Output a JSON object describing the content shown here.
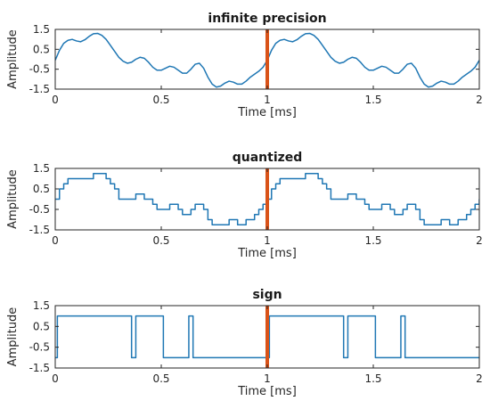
{
  "chart_data": [
    {
      "type": "line",
      "title": "infinite precision",
      "xlabel": "Time [ms]",
      "ylabel": "Amplitude",
      "xlim": [
        0,
        2
      ],
      "ylim": [
        -1.5,
        1.5
      ],
      "xticks": [
        0,
        0.5,
        1,
        1.5,
        2
      ],
      "xtick_labels": [
        "0",
        "0.5",
        "1",
        "1.5",
        "2"
      ],
      "yticks": [
        -1.5,
        -0.5,
        0.5,
        1.5
      ],
      "ytick_labels": [
        "-1.5",
        "-0.5",
        "0.5",
        "1.5"
      ],
      "grid": false,
      "marker_x": 1,
      "colors": {
        "series": "#1f77b4",
        "marker": "#d95319"
      },
      "series": [
        {
          "x": [
            0,
            0.02,
            0.04,
            0.06,
            0.08,
            0.1,
            0.12,
            0.14,
            0.16,
            0.18,
            0.2,
            0.22,
            0.24,
            0.26,
            0.28,
            0.3,
            0.32,
            0.34,
            0.36,
            0.38,
            0.4,
            0.42,
            0.44,
            0.46,
            0.48,
            0.5,
            0.52,
            0.54,
            0.56,
            0.58,
            0.6,
            0.62,
            0.64,
            0.66,
            0.68,
            0.7,
            0.72,
            0.74,
            0.76,
            0.78,
            0.8,
            0.82,
            0.84,
            0.86,
            0.88,
            0.9,
            0.92,
            0.94,
            0.96,
            0.98,
            1,
            1.02,
            1.04,
            1.06,
            1.08,
            1.1,
            1.12,
            1.14,
            1.16,
            1.18,
            1.2,
            1.22,
            1.24,
            1.26,
            1.28,
            1.3,
            1.32,
            1.34,
            1.36,
            1.38,
            1.4,
            1.42,
            1.44,
            1.46,
            1.48,
            1.5,
            1.52,
            1.54,
            1.56,
            1.58,
            1.6,
            1.62,
            1.64,
            1.66,
            1.68,
            1.7,
            1.72,
            1.74,
            1.76,
            1.78,
            1.8,
            1.82,
            1.84,
            1.86,
            1.88,
            1.9,
            1.92,
            1.94,
            1.96,
            1.98,
            2
          ],
          "y": [
            -0.05,
            0.45,
            0.8,
            0.95,
            1.0,
            0.92,
            0.88,
            0.98,
            1.15,
            1.28,
            1.3,
            1.2,
            1.0,
            0.7,
            0.4,
            0.1,
            -0.1,
            -0.2,
            -0.15,
            0.0,
            0.1,
            0.05,
            -0.15,
            -0.4,
            -0.55,
            -0.55,
            -0.45,
            -0.35,
            -0.4,
            -0.55,
            -0.7,
            -0.7,
            -0.5,
            -0.25,
            -0.2,
            -0.45,
            -0.9,
            -1.25,
            -1.4,
            -1.35,
            -1.2,
            -1.1,
            -1.15,
            -1.25,
            -1.25,
            -1.1,
            -0.9,
            -0.75,
            -0.6,
            -0.4,
            -0.05,
            0.45,
            0.8,
            0.95,
            1.0,
            0.92,
            0.88,
            0.98,
            1.15,
            1.28,
            1.3,
            1.2,
            1.0,
            0.7,
            0.4,
            0.1,
            -0.1,
            -0.2,
            -0.15,
            0.0,
            0.1,
            0.05,
            -0.15,
            -0.4,
            -0.55,
            -0.55,
            -0.45,
            -0.35,
            -0.4,
            -0.55,
            -0.7,
            -0.7,
            -0.5,
            -0.25,
            -0.2,
            -0.45,
            -0.9,
            -1.25,
            -1.4,
            -1.35,
            -1.2,
            -1.1,
            -1.15,
            -1.25,
            -1.25,
            -1.1,
            -0.9,
            -0.75,
            -0.6,
            -0.4,
            -0.05
          ]
        }
      ]
    },
    {
      "type": "line",
      "step": true,
      "title": "quantized",
      "xlabel": "Time [ms]",
      "ylabel": "Amplitude",
      "xlim": [
        0,
        2
      ],
      "ylim": [
        -1.5,
        1.5
      ],
      "xticks": [
        0,
        0.5,
        1,
        1.5,
        2
      ],
      "xtick_labels": [
        "0",
        "0.5",
        "1",
        "1.5",
        "2"
      ],
      "yticks": [
        -1.5,
        -0.5,
        0.5,
        1.5
      ],
      "ytick_labels": [
        "-1.5",
        "-0.5",
        "0.5",
        "1.5"
      ],
      "grid": false,
      "marker_x": 1,
      "colors": {
        "series": "#1f77b4",
        "marker": "#d95319"
      },
      "series": [
        {
          "x": [
            0,
            0.02,
            0.04,
            0.06,
            0.08,
            0.1,
            0.12,
            0.14,
            0.16,
            0.18,
            0.2,
            0.22,
            0.24,
            0.26,
            0.28,
            0.3,
            0.32,
            0.34,
            0.36,
            0.38,
            0.4,
            0.42,
            0.44,
            0.46,
            0.48,
            0.5,
            0.52,
            0.54,
            0.56,
            0.58,
            0.6,
            0.62,
            0.64,
            0.66,
            0.68,
            0.7,
            0.72,
            0.74,
            0.76,
            0.78,
            0.8,
            0.82,
            0.84,
            0.86,
            0.88,
            0.9,
            0.92,
            0.94,
            0.96,
            0.98,
            1,
            1.02,
            1.04,
            1.06,
            1.08,
            1.1,
            1.12,
            1.14,
            1.16,
            1.18,
            1.2,
            1.22,
            1.24,
            1.26,
            1.28,
            1.3,
            1.32,
            1.34,
            1.36,
            1.38,
            1.4,
            1.42,
            1.44,
            1.46,
            1.48,
            1.5,
            1.52,
            1.54,
            1.56,
            1.58,
            1.6,
            1.62,
            1.64,
            1.66,
            1.68,
            1.7,
            1.72,
            1.74,
            1.76,
            1.78,
            1.8,
            1.82,
            1.84,
            1.86,
            1.88,
            1.9,
            1.92,
            1.94,
            1.96,
            1.98,
            2
          ],
          "y": [
            0,
            0.5,
            0.75,
            1.0,
            1.0,
            1.0,
            1.0,
            1.0,
            1.0,
            1.25,
            1.25,
            1.25,
            1.0,
            0.75,
            0.5,
            0.0,
            0.0,
            0.0,
            0.0,
            0.25,
            0.25,
            0.0,
            0.0,
            -0.25,
            -0.5,
            -0.5,
            -0.5,
            -0.25,
            -0.25,
            -0.5,
            -0.75,
            -0.75,
            -0.5,
            -0.25,
            -0.25,
            -0.5,
            -1.0,
            -1.25,
            -1.25,
            -1.25,
            -1.25,
            -1.0,
            -1.0,
            -1.25,
            -1.25,
            -1.0,
            -1.0,
            -0.75,
            -0.5,
            -0.25,
            0,
            0.5,
            0.75,
            1.0,
            1.0,
            1.0,
            1.0,
            1.0,
            1.0,
            1.25,
            1.25,
            1.25,
            1.0,
            0.75,
            0.5,
            0.0,
            0.0,
            0.0,
            0.0,
            0.25,
            0.25,
            0.0,
            0.0,
            -0.25,
            -0.5,
            -0.5,
            -0.5,
            -0.25,
            -0.25,
            -0.5,
            -0.75,
            -0.75,
            -0.5,
            -0.25,
            -0.25,
            -0.5,
            -1.0,
            -1.25,
            -1.25,
            -1.25,
            -1.25,
            -1.0,
            -1.0,
            -1.25,
            -1.25,
            -1.0,
            -1.0,
            -0.75,
            -0.5,
            -0.25,
            0
          ]
        }
      ]
    },
    {
      "type": "line",
      "step": true,
      "title": "sign",
      "xlabel": "Time [ms]",
      "ylabel": "Amplitude",
      "xlim": [
        0,
        2
      ],
      "ylim": [
        -1.5,
        1.5
      ],
      "xticks": [
        0,
        0.5,
        1,
        1.5,
        2
      ],
      "xtick_labels": [
        "0",
        "0.5",
        "1",
        "1.5",
        "2"
      ],
      "yticks": [
        -1.5,
        -0.5,
        0.5,
        1.5
      ],
      "ytick_labels": [
        "-1.5",
        "-0.5",
        "0.5",
        "1.5"
      ],
      "grid": false,
      "marker_x": 1,
      "colors": {
        "series": "#1f77b4",
        "marker": "#d95319"
      },
      "series": [
        {
          "x": [
            0,
            0.01,
            0.01,
            0.36,
            0.36,
            0.38,
            0.38,
            0.51,
            0.51,
            0.63,
            0.63,
            0.65,
            0.65,
            1.0,
            1.0,
            1.01,
            1.01,
            1.36,
            1.36,
            1.38,
            1.38,
            1.51,
            1.51,
            1.63,
            1.63,
            1.65,
            1.65,
            2.0
          ],
          "y": [
            -1,
            -1,
            1,
            1,
            -1,
            -1,
            1,
            1,
            -1,
            -1,
            1,
            1,
            -1,
            -1,
            -1,
            -1,
            1,
            1,
            -1,
            -1,
            1,
            1,
            -1,
            -1,
            1,
            1,
            -1,
            -1
          ]
        }
      ]
    }
  ]
}
